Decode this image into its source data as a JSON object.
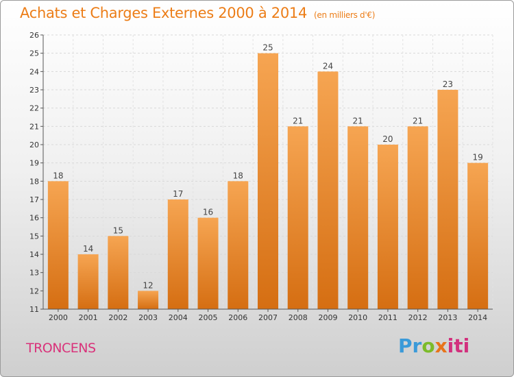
{
  "chart_data": {
    "type": "bar",
    "title": "Achats et Charges Externes 2000 à 2014",
    "unit_label": "(en milliers d'€)",
    "categories": [
      "2000",
      "2001",
      "2002",
      "2003",
      "2004",
      "2005",
      "2006",
      "2007",
      "2008",
      "2009",
      "2010",
      "2011",
      "2012",
      "2013",
      "2014"
    ],
    "values": [
      18,
      14,
      15,
      12,
      17,
      16,
      18,
      25,
      21,
      24,
      21,
      20,
      21,
      23,
      19
    ],
    "ylim": [
      11,
      26
    ],
    "yticks": [
      11,
      12,
      13,
      14,
      15,
      16,
      17,
      18,
      19,
      20,
      21,
      22,
      23,
      24,
      25,
      26
    ],
    "grid": true,
    "bar_color_top": "#f6a552",
    "bar_color_bottom": "#d56e12"
  },
  "location": "TRONCENS",
  "logo": {
    "text": "Proxiti",
    "part1": "Pr",
    "part2": "o",
    "part3": "x",
    "part4": "iti"
  }
}
